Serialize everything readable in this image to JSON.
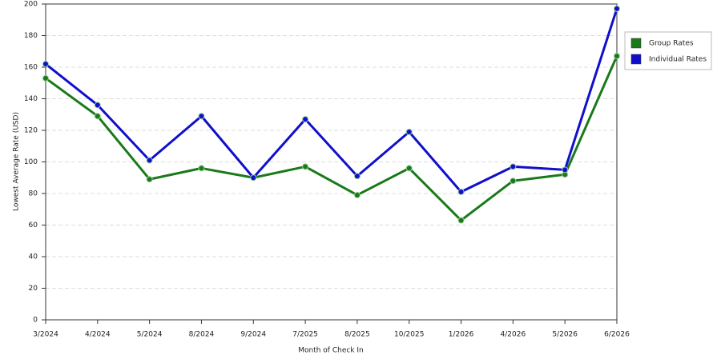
{
  "chart_data": {
    "type": "line",
    "x_label": "Month of Check In",
    "y_label": "Lowest Average Rate (USD)",
    "categories": [
      "3/2024",
      "4/2024",
      "5/2024",
      "8/2024",
      "9/2024",
      "7/2025",
      "8/2025",
      "10/2025",
      "1/2026",
      "4/2026",
      "5/2026",
      "6/2026"
    ],
    "series": [
      {
        "name": "Group Rates",
        "color": "#1a7a1a",
        "values": [
          153,
          129,
          89,
          96,
          90,
          97,
          79,
          96,
          63,
          88,
          92,
          167
        ]
      },
      {
        "name": "Individual Rates",
        "color": "#1010cc",
        "values": [
          162,
          136,
          101,
          129,
          90,
          127,
          91,
          119,
          81,
          97,
          95,
          197
        ]
      }
    ],
    "ylim": [
      0,
      200
    ],
    "yticks": [
      0,
      20,
      40,
      60,
      80,
      100,
      120,
      140,
      160,
      180,
      200
    ],
    "grid": true,
    "legend": "right"
  }
}
